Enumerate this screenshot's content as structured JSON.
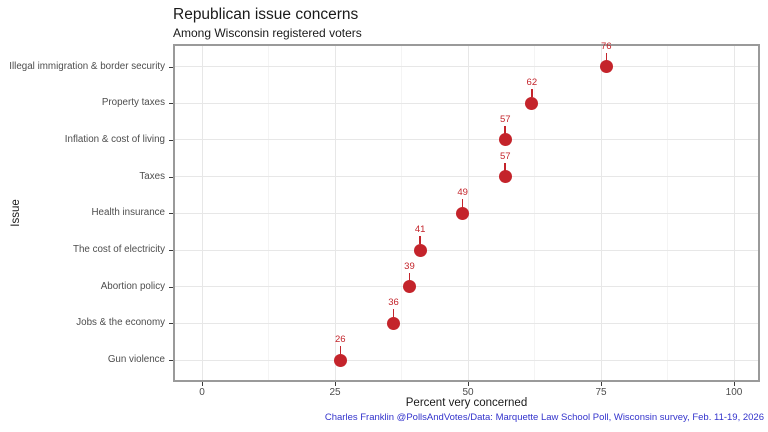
{
  "chart_data": {
    "type": "scatter",
    "title": "Republican issue concerns",
    "subtitle": "Among Wisconsin registered voters",
    "xlabel": "Percent very concerned",
    "ylabel": "Issue",
    "caption": "Charles Franklin @PollsAndVotes/Data: Marquette Law School Poll, Wisconsin survey, Feb. 11-19, 2026",
    "categories": [
      "Illegal immigration & border security",
      "Property taxes",
      "Inflation & cost of living",
      "Taxes",
      "Health insurance",
      "The cost of electricity",
      "Abortion policy",
      "Jobs & the economy",
      "Gun violence"
    ],
    "values": [
      76,
      62,
      57,
      57,
      49,
      41,
      39,
      36,
      26
    ],
    "xlim": [
      0,
      100
    ],
    "x_ticks": [
      0,
      25,
      50,
      75,
      100
    ],
    "x_minor_ticks": [
      12.5,
      37.5,
      62.5,
      87.5
    ],
    "grid": true,
    "legend": "none",
    "point_color": "#C4242B",
    "value_label_color": "#C4242B",
    "caption_color": "#3333CC"
  }
}
